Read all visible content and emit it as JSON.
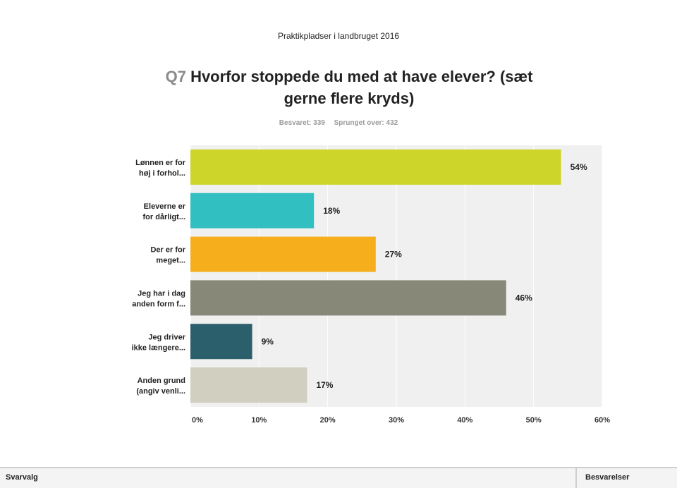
{
  "header": {
    "survey_title": "Praktikpladser i landbruget 2016",
    "question_number": "Q7",
    "question_text": "Hvorfor stoppede du med at have elever? (sæt gerne flere kryds)",
    "answered": "Besvaret: 339",
    "skipped": "Sprunget over: 432"
  },
  "chart_data": {
    "type": "bar",
    "orientation": "horizontal",
    "categories": [
      [
        "Lønnen er for",
        "høj i forhol..."
      ],
      [
        "Eleverne er",
        "for dårligt..."
      ],
      [
        "Der er for",
        "meget..."
      ],
      [
        "Jeg har i dag",
        "anden form f..."
      ],
      [
        "Jeg driver",
        "ikke længere..."
      ],
      [
        "Anden grund",
        "(angiv venli..."
      ]
    ],
    "values": [
      54,
      18,
      27,
      46,
      9,
      17
    ],
    "data_labels": [
      "54%",
      "18%",
      "27%",
      "46%",
      "9%",
      "17%"
    ],
    "colors": [
      "#cdd52b",
      "#32bfc1",
      "#f6ae1d",
      "#888878",
      "#2c5f6c",
      "#d0cfc0"
    ],
    "xlim": [
      0,
      60
    ],
    "x_ticks": [
      0,
      10,
      20,
      30,
      40,
      50,
      60
    ],
    "x_tick_labels": [
      "0%",
      "10%",
      "20%",
      "30%",
      "40%",
      "50%",
      "60%"
    ],
    "background": "#f0f0f0",
    "grid": true
  },
  "table": {
    "col_answer": "Svarvalg",
    "col_responses": "Besvarelser"
  }
}
